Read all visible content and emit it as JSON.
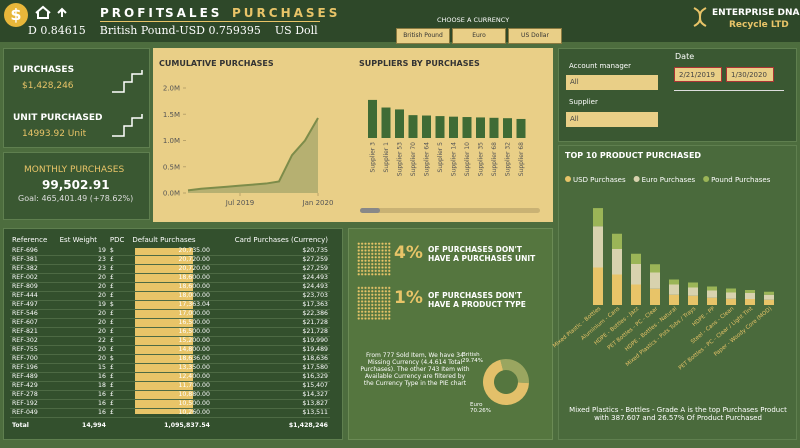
{
  "header": {
    "logo": "$",
    "nav": [
      "PROFIT",
      "SALES",
      "PURCHASES"
    ],
    "ticker": "D 0.84615    British Pound-USD 0.759395    US Doll",
    "currency_label": "CHOOSE A CURRENCY",
    "currencies": [
      "British Pound",
      "Euro",
      "US Dollar"
    ],
    "brand": "ENTERPRISE DNA",
    "brand_sub": "Recycle LTD"
  },
  "kpis": {
    "purchases_label": "PURCHASES",
    "purchases": "$1,428,246",
    "units_label": "UNIT PURCHASED",
    "units": "14993.92 Unit",
    "monthly_label": "MONTHLY PURCHASES",
    "monthly": "99,502.91",
    "goal": "Goal: 465,401.49 (+78.62%)"
  },
  "filters": {
    "account_label": "Account manager",
    "account": "All",
    "supplier_label": "Supplier",
    "supplier": "All",
    "date_label": "Date",
    "date_start": "2/21/2019",
    "date_end": "1/30/2020"
  },
  "table": {
    "columns": [
      "Reference",
      "Est Weight",
      "PDC",
      "Default Purchases",
      "Card Purchases (Currency)"
    ],
    "rows": [
      [
        "REF-696",
        "19",
        "$",
        "20,735.00",
        "$20,735"
      ],
      [
        "REF-381",
        "23",
        "£",
        "20,720.00",
        "$27,259"
      ],
      [
        "REF-382",
        "23",
        "£",
        "20,720.00",
        "$27,259"
      ],
      [
        "REF-002",
        "20",
        "£",
        "18,600.00",
        "$24,493"
      ],
      [
        "REF-809",
        "20",
        "£",
        "18,600.00",
        "$24,493"
      ],
      [
        "REF-444",
        "20",
        "£",
        "18,000.00",
        "$23,703"
      ],
      [
        "REF-497",
        "19",
        "$",
        "17,363.04",
        "$17,363"
      ],
      [
        "REF-546",
        "20",
        "£",
        "17,000.00",
        "$22,386"
      ],
      [
        "REF-607",
        "20",
        "£",
        "16,500.00",
        "$21,728"
      ],
      [
        "REF-821",
        "20",
        "£",
        "16,500.00",
        "$21,728"
      ],
      [
        "REF-302",
        "22",
        "£",
        "15,200.00",
        "$19,990"
      ],
      [
        "REF-755",
        "20",
        "£",
        "14,800.00",
        "$19,489"
      ],
      [
        "REF-700",
        "20",
        "$",
        "18,636.00",
        "$18,636"
      ],
      [
        "REF-196",
        "15",
        "£",
        "13,350.00",
        "$17,580"
      ],
      [
        "REF-489",
        "16",
        "£",
        "12,400.00",
        "$16,329"
      ],
      [
        "REF-429",
        "18",
        "£",
        "11,700.00",
        "$15,407"
      ],
      [
        "REF-278",
        "16",
        "£",
        "10,880.00",
        "$14,327"
      ],
      [
        "REF-192",
        "16",
        "£",
        "10,500.00",
        "$13,827"
      ],
      [
        "REF-049",
        "16",
        "£",
        "10,260.00",
        "$13,511"
      ]
    ],
    "total": [
      "Total",
      "14,994",
      "",
      "1,095,837.54",
      "$1,428,246"
    ]
  },
  "info": {
    "pct1": "4%",
    "text1": "OF PURCHASES DON'T HAVE A PURCHASES UNIT",
    "pct2": "1%",
    "text2": "OF PURCHASES DON'T HAVE A PRODUCT TYPE",
    "note": "From 777 Sold Item, We have 34 Missing Currency (4.4.614 Total Purchases). The other 743 Item with Available Currency are filtered by the Currency Type in the PIE chart"
  },
  "chart_data": [
    {
      "type": "area",
      "title": "CUMULATIVE PURCHASES",
      "color": "#7d8c4a",
      "x": [
        "Mar 2019",
        "Apr 2019",
        "May 2019",
        "Jun 2019",
        "Jul 2019",
        "Aug 2019",
        "Sep 2019",
        "Oct 2019",
        "Nov 2019",
        "Dec 2019",
        "Jan 2020"
      ],
      "values": [
        50000,
        80000,
        100000,
        120000,
        140000,
        160000,
        180000,
        220000,
        720000,
        1000000,
        1428246
      ],
      "xticks": [
        "Jul 2019",
        "Jan 2020"
      ],
      "ylim": [
        0,
        2000000
      ],
      "yticks": [
        {
          "value": 0,
          "label": "0.0M"
        },
        {
          "value": 500000,
          "label": "0.5M"
        },
        {
          "value": 1000000,
          "label": "1.0M"
        },
        {
          "value": 1500000,
          "label": "1.5M"
        },
        {
          "value": 2000000,
          "label": "2.0M"
        }
      ]
    },
    {
      "type": "bar",
      "title": "SUPPLIERS BY PURCHASES",
      "color": "#3f6b35",
      "categories": [
        "Supplier 3",
        "Supplier 1",
        "Supplier 53",
        "Supplier 70",
        "Supplier 64",
        "Supplier 5",
        "Supplier 14",
        "Supplier 10",
        "Supplier 35",
        "Supplier 68",
        "Supplier 32",
        "Supplier 68"
      ],
      "values": [
        200000,
        160000,
        150000,
        120000,
        118000,
        115000,
        112000,
        110000,
        108000,
        106000,
        104000,
        100000
      ],
      "ylim": [
        0,
        210000
      ]
    },
    {
      "type": "stacked-bar",
      "title": "TOP 10 PRODUCT PURCHASED",
      "categories": [
        "Mixed Plastic - Bottles",
        "Aluminium - Cans",
        "HDPE - Bottles - Jazz",
        "PET Bottles - PC - Clear",
        "HDPE - Bottles - Natural",
        "Mixed Plastics - Pots Tubs / Trays",
        "HDPE - PP",
        "Steel - Cans - Clean",
        "PET Bottles - PC - Clear / Light Tint",
        "Paper - Woody Core (MOD)"
      ],
      "series": [
        {
          "name": "USD Purchases",
          "color": "#e8c468",
          "values": [
            150000,
            122000,
            82000,
            65000,
            41000,
            37000,
            29000,
            25000,
            24000,
            21000
          ]
        },
        {
          "name": "Euro Purchases",
          "color": "#d8d2ae",
          "values": [
            165000,
            102000,
            82000,
            65000,
            41000,
            33000,
            29000,
            25000,
            24000,
            20000
          ]
        },
        {
          "name": "Pound Purchases",
          "color": "#9bb557",
          "values": [
            72607,
            61000,
            41000,
            33000,
            20000,
            20000,
            16000,
            16000,
            12000,
            12000
          ]
        }
      ],
      "ylim": [
        0,
        420000
      ],
      "note": "Mixed Plastics - Bottles - Grade A is the top Purchases Product with 387.607 and 26.57% Of Product Purchased"
    },
    {
      "type": "pie",
      "categories": [
        "British",
        "Euro"
      ],
      "values": [
        29.74,
        70.26
      ],
      "value_labels": [
        "29.74%",
        "70.26%"
      ],
      "colors": [
        "#9aa660",
        "#e3c06a"
      ]
    }
  ]
}
